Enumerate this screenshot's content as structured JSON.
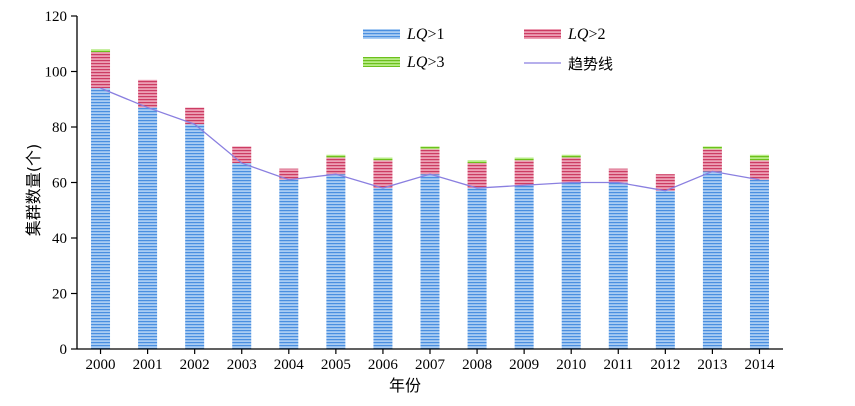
{
  "chart_data": {
    "type": "bar",
    "stacked": true,
    "categories": [
      "2000",
      "2001",
      "2002",
      "2003",
      "2004",
      "2005",
      "2006",
      "2007",
      "2008",
      "2009",
      "2010",
      "2011",
      "2012",
      "2013",
      "2014"
    ],
    "series": [
      {
        "name": "LQ>1",
        "legend_prefix": "LQ",
        "legend_suffix": ">1",
        "color": "#4a90e2",
        "values": [
          94,
          87,
          81,
          67,
          61,
          63,
          58,
          63,
          58,
          59,
          60,
          60,
          57,
          64,
          61
        ]
      },
      {
        "name": "LQ>2",
        "legend_prefix": "LQ",
        "legend_suffix": ">2",
        "color": "#d84a72",
        "values": [
          13,
          10,
          6,
          6,
          4,
          6,
          10,
          9,
          9,
          9,
          9,
          5,
          6,
          8,
          7
        ]
      },
      {
        "name": "LQ>3",
        "legend_prefix": "LQ",
        "legend_suffix": ">3",
        "color": "#7ed321",
        "values": [
          1,
          0,
          0,
          0,
          0,
          1,
          1,
          1,
          1,
          1,
          1,
          0,
          0,
          1,
          2
        ]
      }
    ],
    "trend": {
      "name": "趋势线",
      "color": "#8a7fe0",
      "values": [
        94,
        87,
        81,
        67,
        61,
        63,
        58,
        63,
        58,
        59,
        60,
        60,
        57,
        64,
        61
      ]
    },
    "xlabel": "年份",
    "ylabel": "集群数量(个)",
    "ylim": [
      0,
      120
    ],
    "yticks": [
      0,
      20,
      40,
      60,
      80,
      100,
      120
    ],
    "grid": false,
    "legend_position": "top-right"
  }
}
